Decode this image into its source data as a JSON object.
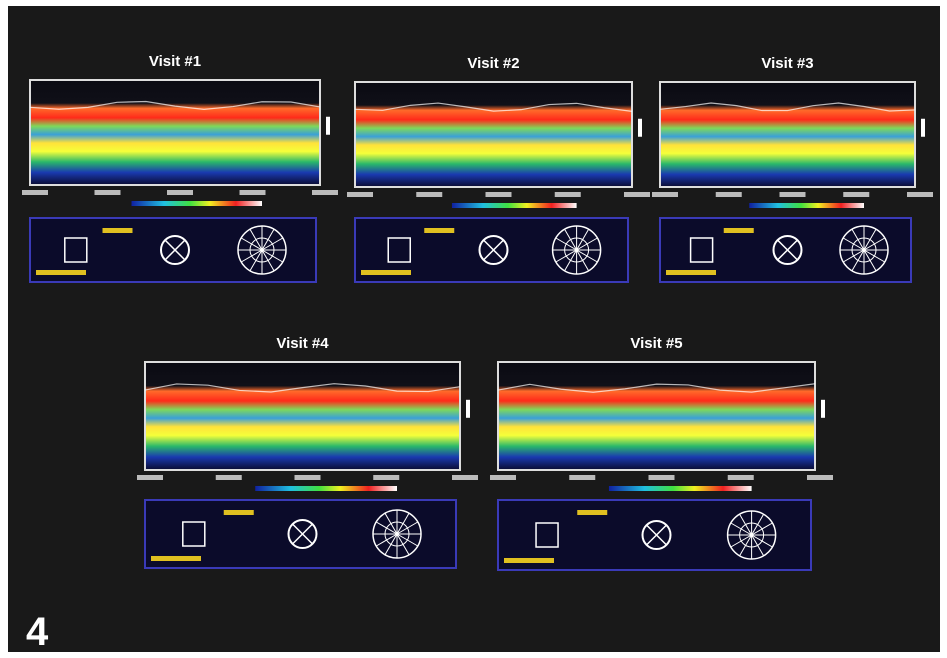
{
  "figure_number": "4",
  "panels": [
    {
      "title": "Visit #1"
    },
    {
      "title": "Visit #2"
    },
    {
      "title": "Visit #3"
    },
    {
      "title": "Visit #4"
    },
    {
      "title": "Visit #5"
    }
  ]
}
